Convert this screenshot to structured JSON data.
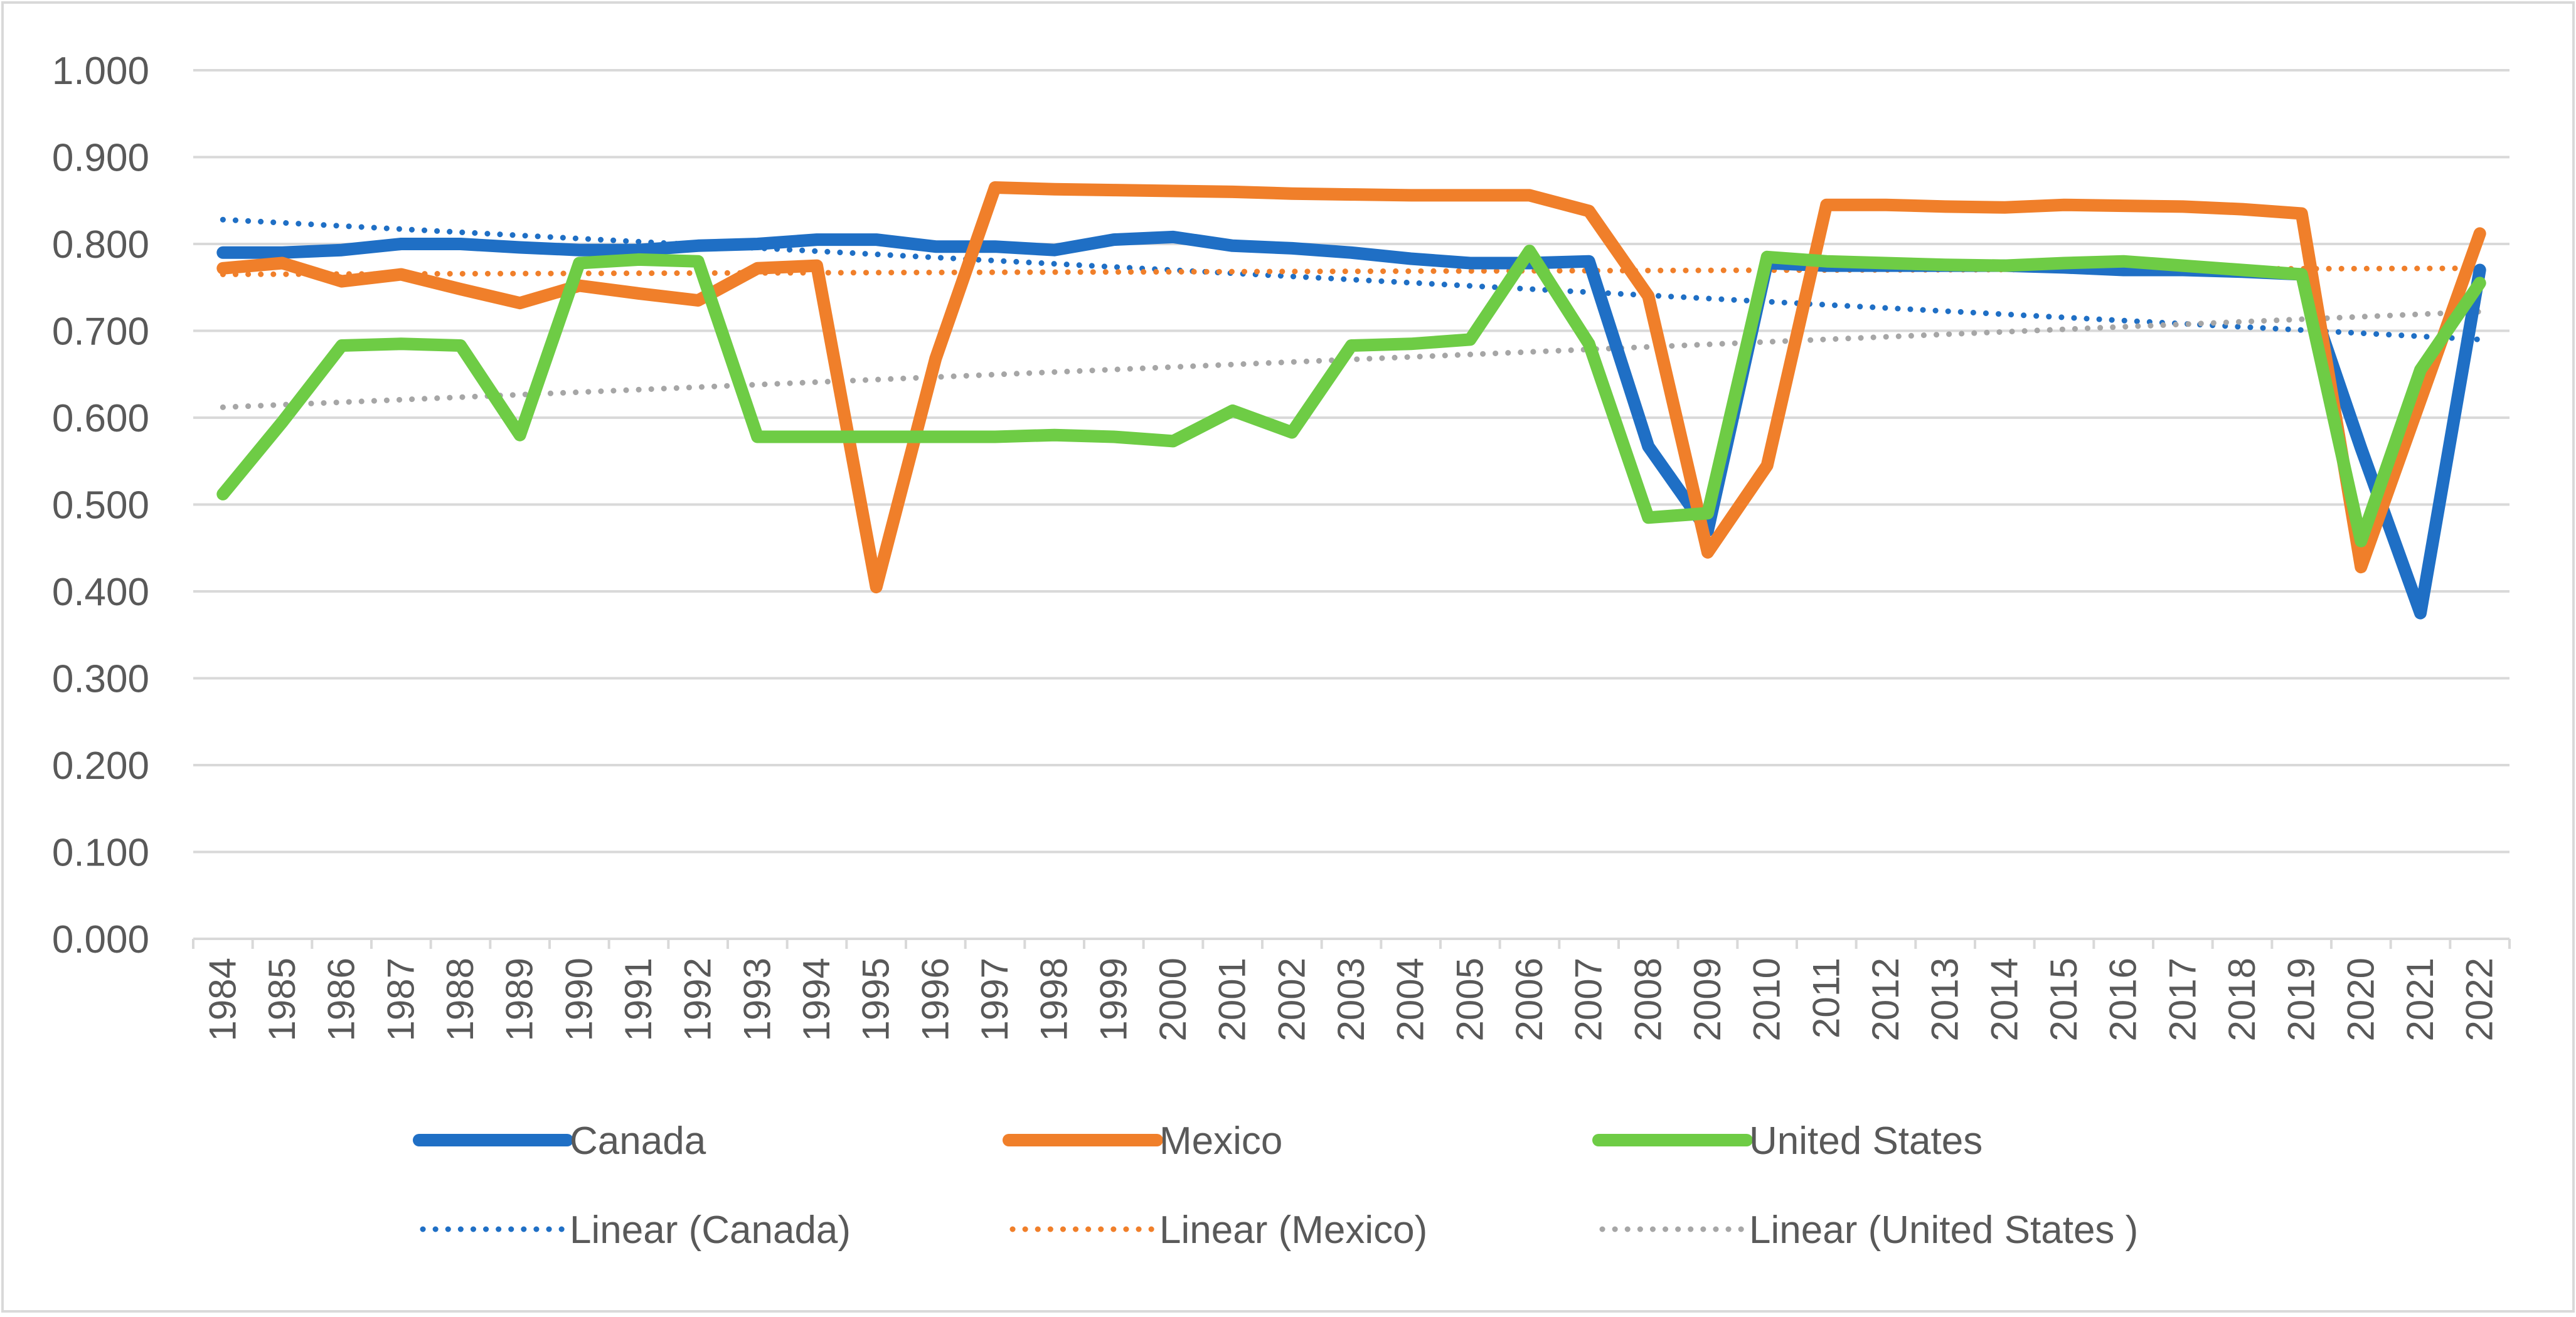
{
  "chart_data": {
    "type": "line",
    "title": "",
    "xlabel": "",
    "ylabel": "",
    "ylim": [
      0,
      1
    ],
    "y_ticks": [
      "0.000",
      "0.100",
      "0.200",
      "0.300",
      "0.400",
      "0.500",
      "0.600",
      "0.700",
      "0.800",
      "0.900",
      "1.000"
    ],
    "grid": true,
    "legend_position": "bottom",
    "categories": [
      "1984",
      "1985",
      "1986",
      "1987",
      "1988",
      "1989",
      "1990",
      "1991",
      "1992",
      "1993",
      "1994",
      "1995",
      "1996",
      "1997",
      "1998",
      "1999",
      "2000",
      "2001",
      "2002",
      "2003",
      "2004",
      "2005",
      "2006",
      "2007",
      "2008",
      "2009",
      "2010",
      "2011",
      "2012",
      "2013",
      "2014",
      "2015",
      "2016",
      "2017",
      "2018",
      "2019",
      "2020",
      "2021",
      "2022"
    ],
    "series": [
      {
        "name": "Canada",
        "color": "#1f6fc5",
        "values": [
          0.79,
          0.79,
          0.793,
          0.8,
          0.8,
          0.796,
          0.793,
          0.793,
          0.798,
          0.8,
          0.805,
          0.805,
          0.797,
          0.797,
          0.793,
          0.805,
          0.808,
          0.798,
          0.795,
          0.79,
          0.783,
          0.778,
          0.778,
          0.78,
          0.567,
          0.47,
          0.778,
          0.775,
          0.775,
          0.775,
          0.775,
          0.773,
          0.77,
          0.77,
          0.768,
          0.765,
          0.565,
          0.375,
          0.77
        ]
      },
      {
        "name": "Mexico",
        "color": "#f07f2a",
        "values": [
          0.772,
          0.778,
          0.757,
          0.765,
          0.748,
          0.732,
          0.752,
          0.743,
          0.735,
          0.772,
          0.775,
          0.405,
          0.668,
          0.865,
          0.863,
          0.862,
          0.861,
          0.86,
          0.858,
          0.857,
          0.856,
          0.856,
          0.856,
          0.838,
          0.74,
          0.445,
          0.545,
          0.845,
          0.845,
          0.843,
          0.842,
          0.845,
          0.844,
          0.843,
          0.84,
          0.835,
          0.428,
          0.62,
          0.812
        ]
      },
      {
        "name": "United States",
        "color": "#6ecc45",
        "values": [
          0.512,
          0.595,
          0.683,
          0.685,
          0.683,
          0.58,
          0.778,
          0.782,
          0.78,
          0.578,
          0.578,
          0.578,
          0.578,
          0.578,
          0.58,
          0.578,
          0.573,
          0.608,
          0.583,
          0.683,
          0.685,
          0.69,
          0.792,
          0.685,
          0.485,
          0.49,
          0.785,
          0.78,
          0.778,
          0.776,
          0.775,
          0.778,
          0.78,
          0.775,
          0.77,
          0.765,
          0.458,
          0.655,
          0.755
        ]
      }
    ],
    "trendlines": [
      {
        "name": "Linear (Canada)",
        "color": "#1f6fc5",
        "start": 0.828,
        "end": 0.69
      },
      {
        "name": "Linear (Mexico)",
        "color": "#f07f2a",
        "start": 0.765,
        "end": 0.772
      },
      {
        "name": "Linear (United States )",
        "color": "#a6a6a6",
        "start": 0.612,
        "end": 0.722
      }
    ]
  }
}
